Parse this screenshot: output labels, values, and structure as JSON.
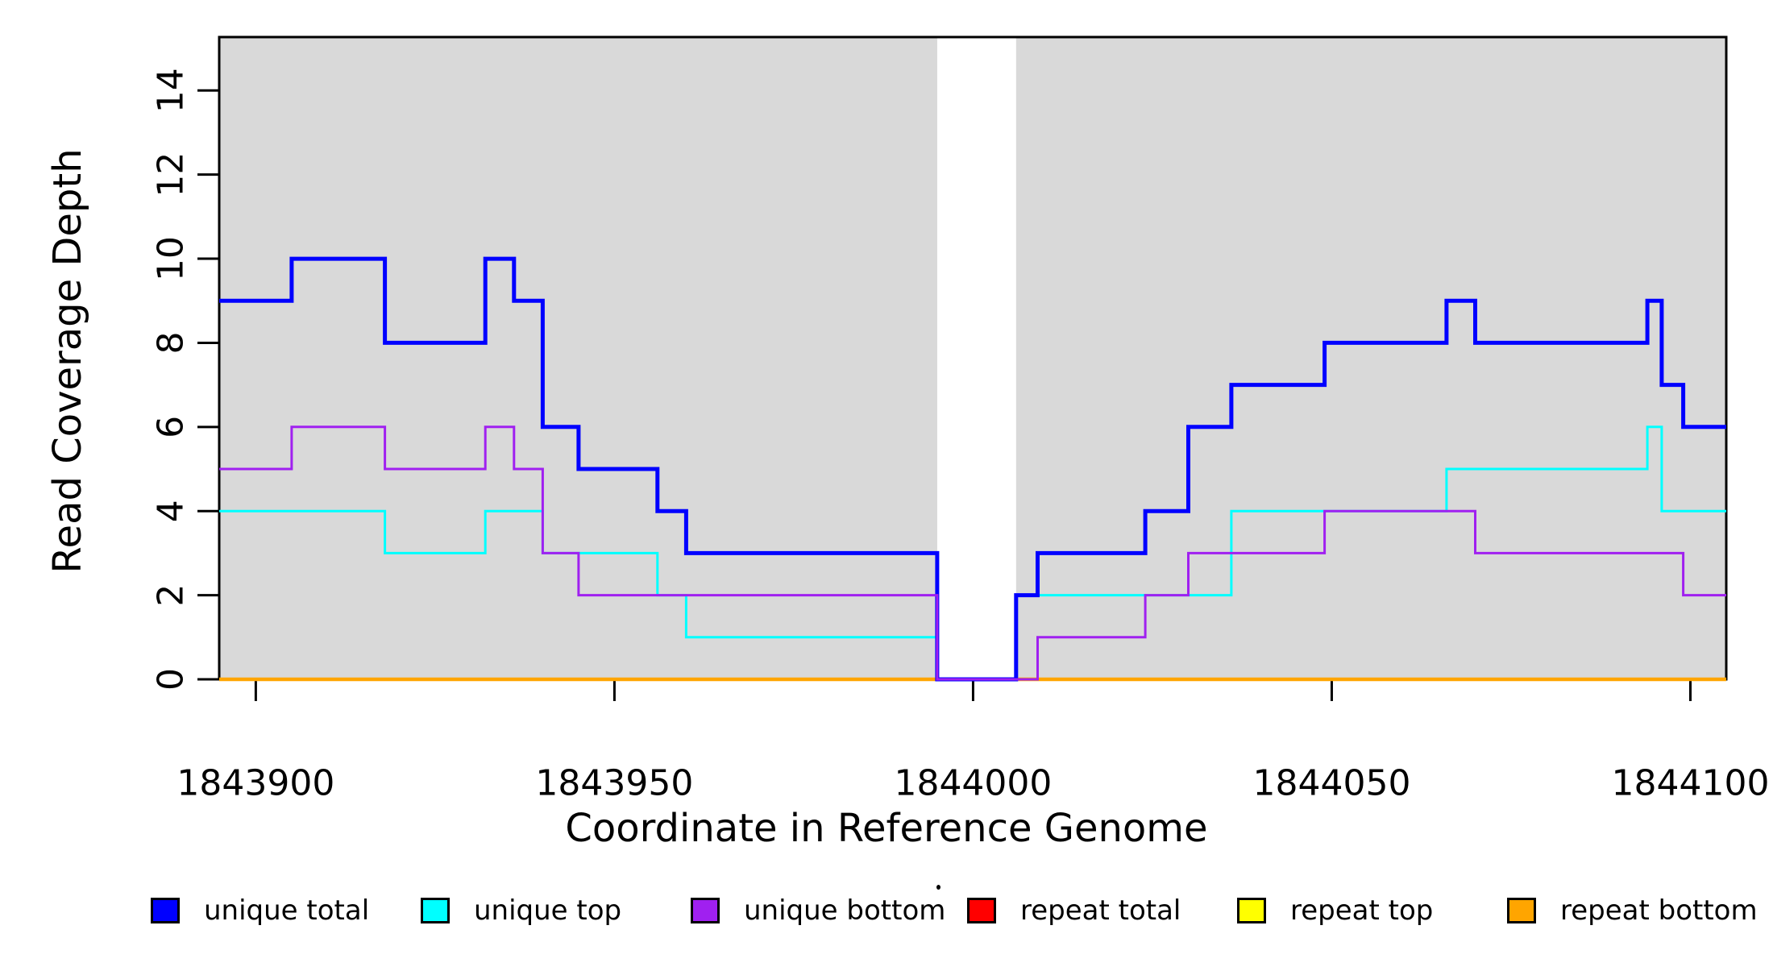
{
  "chart_data": {
    "type": "line",
    "subtype": "step-after-coverage",
    "title": "",
    "xlabel": "Coordinate in Reference Genome",
    "ylabel": "Read Coverage Depth",
    "xlim": [
      1843894.9,
      1844105.0
    ],
    "ylim": [
      0,
      15.27
    ],
    "grid": false,
    "x_ticks": [
      {
        "v": 1843900,
        "label": "1843900"
      },
      {
        "v": 1843950,
        "label": "1843950"
      },
      {
        "v": 1844000,
        "label": "1844000"
      },
      {
        "v": 1844050,
        "label": "1844050"
      },
      {
        "v": 1844100,
        "label": "1844100"
      }
    ],
    "y_ticks": [
      {
        "v": 0,
        "label": "0"
      },
      {
        "v": 2,
        "label": "2"
      },
      {
        "v": 4,
        "label": "4"
      },
      {
        "v": 6,
        "label": "6"
      },
      {
        "v": 8,
        "label": "8"
      },
      {
        "v": 10,
        "label": "10"
      },
      {
        "v": 12,
        "label": "12"
      },
      {
        "v": 14,
        "label": "14"
      }
    ],
    "panel_bg": "#D9D9D9",
    "panel_segments": [
      [
        1843894.9,
        1843995.0
      ],
      [
        1844006.0,
        1844105.0
      ]
    ],
    "gap_region": [
      1843995.0,
      1844006.0
    ],
    "series": [
      {
        "name": "unique total",
        "color": "#0000FF",
        "width": 5,
        "steps": [
          [
            1843894.9,
            9
          ],
          [
            1843905,
            10
          ],
          [
            1843918,
            8
          ],
          [
            1843932,
            10
          ],
          [
            1843936,
            9
          ],
          [
            1843940,
            6
          ],
          [
            1843945,
            5
          ],
          [
            1843956,
            4
          ],
          [
            1843960,
            3
          ],
          [
            1843995,
            0
          ],
          [
            1844006,
            2
          ],
          [
            1844009,
            3
          ],
          [
            1844024,
            4
          ],
          [
            1844030,
            6
          ],
          [
            1844036,
            7
          ],
          [
            1844049,
            8
          ],
          [
            1844066,
            9
          ],
          [
            1844070,
            8
          ],
          [
            1844094,
            9
          ],
          [
            1844096,
            7
          ],
          [
            1844099,
            6
          ]
        ]
      },
      {
        "name": "unique top",
        "color": "#00FFFF",
        "width": 3,
        "steps": [
          [
            1843894.9,
            4
          ],
          [
            1843918,
            3
          ],
          [
            1843932,
            4
          ],
          [
            1843940,
            3
          ],
          [
            1843956,
            2
          ],
          [
            1843960,
            1
          ],
          [
            1843995,
            0
          ],
          [
            1844006,
            2
          ],
          [
            1844036,
            4
          ],
          [
            1844066,
            5
          ],
          [
            1844094,
            6
          ],
          [
            1844096,
            4
          ]
        ]
      },
      {
        "name": "unique bottom",
        "color": "#A020F0",
        "width": 3,
        "steps": [
          [
            1843894.9,
            5
          ],
          [
            1843905,
            6
          ],
          [
            1843918,
            5
          ],
          [
            1843932,
            6
          ],
          [
            1843936,
            5
          ],
          [
            1843940,
            3
          ],
          [
            1843945,
            2
          ],
          [
            1843995,
            0
          ],
          [
            1844009,
            1
          ],
          [
            1844024,
            2
          ],
          [
            1844030,
            3
          ],
          [
            1844049,
            4
          ],
          [
            1844070,
            3
          ],
          [
            1844099,
            2
          ]
        ]
      },
      {
        "name": "repeat total",
        "color": "#FF0000",
        "width": 3,
        "steps": [
          [
            1843894.9,
            0
          ]
        ]
      },
      {
        "name": "repeat top",
        "color": "#FFFF00",
        "width": 3,
        "steps": [
          [
            1843894.9,
            0
          ]
        ]
      },
      {
        "name": "repeat bottom",
        "color": "#FFA500",
        "width": 4.5,
        "steps": [
          [
            1843894.9,
            0
          ]
        ]
      }
    ],
    "draw_order": [
      3,
      4,
      5,
      1,
      0,
      2
    ],
    "legend_position": "bottom"
  },
  "legend": {
    "items": [
      {
        "label": "unique total",
        "color": "#0000FF"
      },
      {
        "label": "unique top",
        "color": "#00FFFF"
      },
      {
        "label": "unique bottom",
        "color": "#A020F0"
      },
      {
        "label": "repeat total",
        "color": "#FF0000"
      },
      {
        "label": "repeat top",
        "color": "#FFFF00"
      },
      {
        "label": "repeat bottom",
        "color": "#FFA500"
      }
    ]
  }
}
